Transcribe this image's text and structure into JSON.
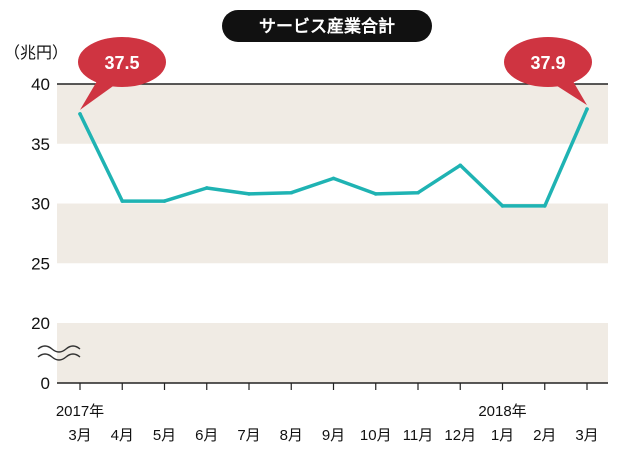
{
  "chart_data": {
    "type": "line",
    "title": "サービス産業合計",
    "unit_label": "（兆円）",
    "y_ticks": [
      0,
      20,
      25,
      30,
      35,
      40
    ],
    "y_axis_break": true,
    "ylim": [
      0,
      40
    ],
    "year_labels": [
      {
        "index": 0,
        "label": "2017年"
      },
      {
        "index": 10,
        "label": "2018年"
      }
    ],
    "categories": [
      "3月",
      "4月",
      "5月",
      "6月",
      "7月",
      "8月",
      "9月",
      "10月",
      "11月",
      "12月",
      "1月",
      "2月",
      "3月"
    ],
    "series": [
      {
        "values": [
          37.5,
          30.2,
          30.2,
          31.3,
          30.8,
          30.9,
          32.1,
          30.8,
          30.9,
          33.2,
          29.8,
          29.8,
          37.9
        ],
        "color": "#1fb3b3"
      }
    ],
    "callouts": [
      {
        "index": 0,
        "label": "37.5"
      },
      {
        "index": 12,
        "label": "37.9"
      }
    ],
    "colors": {
      "band": "#f0ebe4",
      "callout": "#cf3441",
      "title_bg": "#111111"
    }
  }
}
